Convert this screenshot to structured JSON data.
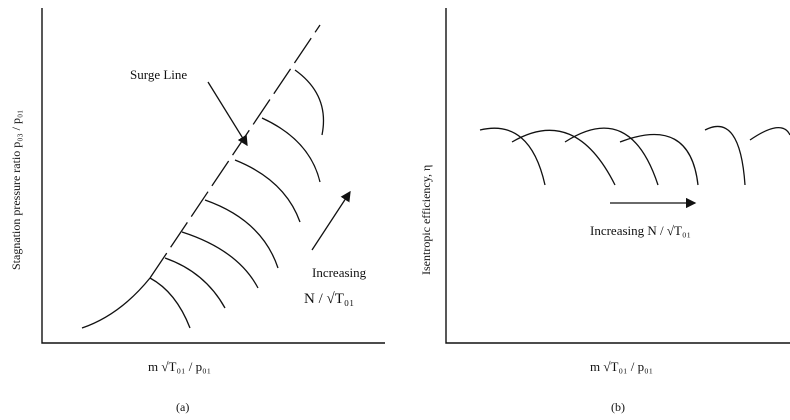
{
  "panel_a": {
    "ylabel": "Stagnation pressure ratio p₀₃ / p₀₁",
    "xlabel": "m √T₀₁ / p₀₁",
    "caption": "(a)",
    "surge_label": "Surge Line",
    "increasing_label": "Increasing",
    "speed_label": "N / √T₀₁"
  },
  "panel_b": {
    "ylabel": "Isentropic efficiency, η",
    "xlabel": "m √T₀₁ / p₀₁",
    "caption": "(b)",
    "increasing_label": "Increasing  N / √T₀₁"
  }
}
